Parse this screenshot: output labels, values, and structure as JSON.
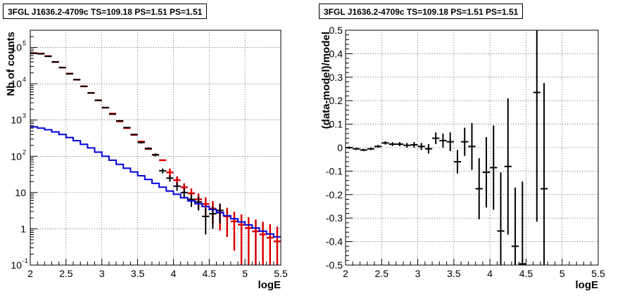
{
  "panels": [
    {
      "title": "3FGL J1636.2-4709c TS=109.18 PS=1.51 PS=1.51"
    },
    {
      "title": "3FGL J1636.2-4709c TS=109.18 PS=1.51 PS=1.51"
    }
  ],
  "colors": {
    "data": "#000000",
    "model": "#dd0000",
    "bkg": "#0000dd"
  },
  "chart_data": [
    {
      "type": "line",
      "xlabel": "logE",
      "ylabel": "Nb of counts",
      "xlim": [
        2,
        5.5
      ],
      "ylim": [
        0.1,
        300000
      ],
      "yscale": "log",
      "grid": true,
      "x_ticks": [
        "2",
        "2.5",
        "3",
        "3.5",
        "4",
        "4.5",
        "5",
        "5.5"
      ],
      "y_ticks": [
        {
          "value": 0.1,
          "base": "10",
          "exp": "-1"
        },
        {
          "value": 1,
          "base": "1",
          "exp": ""
        },
        {
          "value": 10,
          "base": "10",
          "exp": ""
        },
        {
          "value": 100,
          "base": "10",
          "exp": "2"
        },
        {
          "value": 1000,
          "base": "10",
          "exp": "3"
        },
        {
          "value": 10000,
          "base": "10",
          "exp": "4"
        },
        {
          "value": 100000,
          "base": "10",
          "exp": "5"
        }
      ],
      "series": [
        {
          "kind": "points",
          "color": "#dd0000",
          "x": [
            2.05,
            2.15,
            2.25,
            2.35,
            2.45,
            2.55,
            2.65,
            2.75,
            2.85,
            2.95,
            3.05,
            3.15,
            3.25,
            3.35,
            3.45,
            3.55,
            3.65,
            3.75,
            3.85,
            3.95,
            4.05,
            4.15,
            4.25,
            4.35,
            4.45,
            4.55,
            4.65,
            4.75,
            4.85,
            4.95,
            5.05,
            5.15,
            5.25,
            5.35,
            5.45
          ],
          "y": [
            70000,
            68000,
            58000,
            40000,
            28000,
            19000,
            13000,
            8500,
            5600,
            3500,
            2200,
            1500,
            920,
            600,
            390,
            255,
            160,
            110,
            78,
            36,
            22,
            14,
            9.5,
            6.5,
            4.8,
            3.6,
            2.8,
            2.2,
            1.6,
            1.3,
            1.05,
            0.85,
            0.7,
            0.57,
            0.45
          ],
          "err": [
            0,
            0,
            0,
            0,
            0,
            0,
            0,
            0,
            0,
            0,
            0,
            0,
            0,
            0,
            0,
            0,
            0,
            0,
            0,
            10,
            6,
            4,
            3.5,
            3,
            2.6,
            2.2,
            1.9,
            1.6,
            1.35,
            1.2,
            1.05,
            0.95,
            0.85,
            0.78,
            0.7
          ]
        },
        {
          "kind": "points",
          "color": "#000000",
          "x": [
            2.05,
            2.15,
            2.25,
            2.35,
            2.45,
            2.55,
            2.65,
            2.75,
            2.85,
            2.95,
            3.05,
            3.15,
            3.25,
            3.35,
            3.45,
            3.55,
            3.65,
            3.75,
            3.85,
            3.95,
            4.05,
            4.15,
            4.25,
            4.35,
            4.45,
            4.55,
            4.65
          ],
          "y": [
            69000,
            67000,
            57000,
            40000,
            28000,
            19000,
            13000,
            8500,
            5600,
            3500,
            2200,
            1450,
            950,
            620,
            400,
            240,
            165,
            110,
            40,
            25,
            15,
            10,
            6.5,
            5.5,
            2.2,
            2.6,
            3.2
          ],
          "err": [
            260,
            260,
            240,
            200,
            170,
            140,
            115,
            92,
            75,
            60,
            47,
            38,
            31,
            25,
            20,
            15.5,
            12.8,
            10.5,
            6.3,
            5,
            3.9,
            3.2,
            2.5,
            2.3,
            1.5,
            1.6,
            1.8
          ]
        },
        {
          "kind": "step",
          "color": "#0000dd",
          "x": [
            2.05,
            2.15,
            2.25,
            2.35,
            2.45,
            2.55,
            2.65,
            2.75,
            2.85,
            2.95,
            3.05,
            3.15,
            3.25,
            3.35,
            3.45,
            3.55,
            3.65,
            3.75,
            3.85,
            3.95,
            4.05,
            4.15,
            4.25,
            4.35,
            4.45,
            4.55,
            4.65,
            4.75,
            4.85,
            4.95,
            5.05,
            5.15,
            5.25,
            5.35,
            5.45
          ],
          "y": [
            650,
            600,
            540,
            470,
            400,
            330,
            270,
            215,
            170,
            130,
            100,
            78,
            60,
            47,
            37,
            29,
            23,
            18,
            14,
            11,
            9,
            7.2,
            5.9,
            4.9,
            4.1,
            3.4,
            2.8,
            2.3,
            1.9,
            1.55,
            1.28,
            1.05,
            0.86,
            0.72,
            0.6
          ]
        }
      ]
    },
    {
      "type": "scatter",
      "xlabel": "logE",
      "ylabel": "(data-model)/model",
      "xlim": [
        2,
        5.5
      ],
      "ylim": [
        -0.5,
        0.5
      ],
      "grid": true,
      "x_ticks": [
        "2",
        "2.5",
        "3",
        "3.5",
        "4",
        "4.5",
        "5",
        "5.5"
      ],
      "y_ticks": [
        "-0.5",
        "-0.4",
        "-0.3",
        "-0.2",
        "-0.1",
        "0",
        "0.1",
        "0.2",
        "0.3",
        "0.4",
        "0.5"
      ],
      "series": [
        {
          "color": "#000000",
          "x": [
            2.05,
            2.15,
            2.25,
            2.35,
            2.45,
            2.55,
            2.65,
            2.75,
            2.85,
            2.95,
            3.05,
            3.15,
            3.25,
            3.35,
            3.45,
            3.55,
            3.65,
            3.75,
            3.85,
            3.95,
            4.05,
            4.15,
            4.25,
            4.35,
            4.45,
            4.65,
            4.75
          ],
          "y": [
            0.0,
            -0.005,
            -0.01,
            -0.005,
            0.005,
            0.02,
            0.015,
            0.015,
            0.01,
            0.012,
            0.005,
            -0.005,
            0.04,
            0.03,
            0.025,
            -0.06,
            0.025,
            0.005,
            -0.175,
            -0.105,
            -0.085,
            -0.355,
            -0.08,
            -0.42,
            -0.495,
            0.235,
            -0.175
          ],
          "err": [
            0.005,
            0.005,
            0.005,
            0.006,
            0.006,
            0.007,
            0.008,
            0.009,
            0.01,
            0.012,
            0.015,
            0.02,
            0.025,
            0.03,
            0.04,
            0.05,
            0.06,
            0.1,
            0.13,
            0.15,
            0.18,
            0.25,
            0.29,
            0.25,
            0.35,
            0.55,
            0.45
          ]
        }
      ]
    }
  ]
}
